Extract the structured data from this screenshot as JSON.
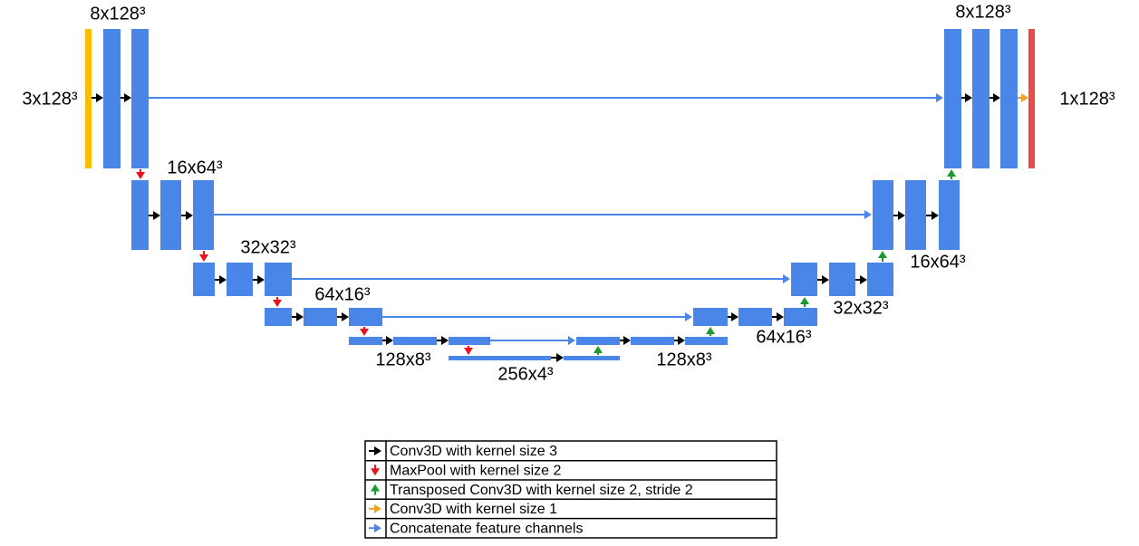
{
  "labels": [
    "8x128³",
    "3x128³",
    "8x128³",
    "1x128³",
    "16x64³",
    "16x64³",
    "32x32³",
    "32x32³",
    "64x16³",
    "64x16³",
    "128x8³",
    "128x8³",
    "256x4³"
  ],
  "legend": [
    "Conv3D with kernel size 3",
    "MaxPool with kernel size 2",
    "Transposed Conv3D with kernel size 2, stride 2",
    "Conv3D with kernel size 1",
    "Concatenate feature channels"
  ]
}
